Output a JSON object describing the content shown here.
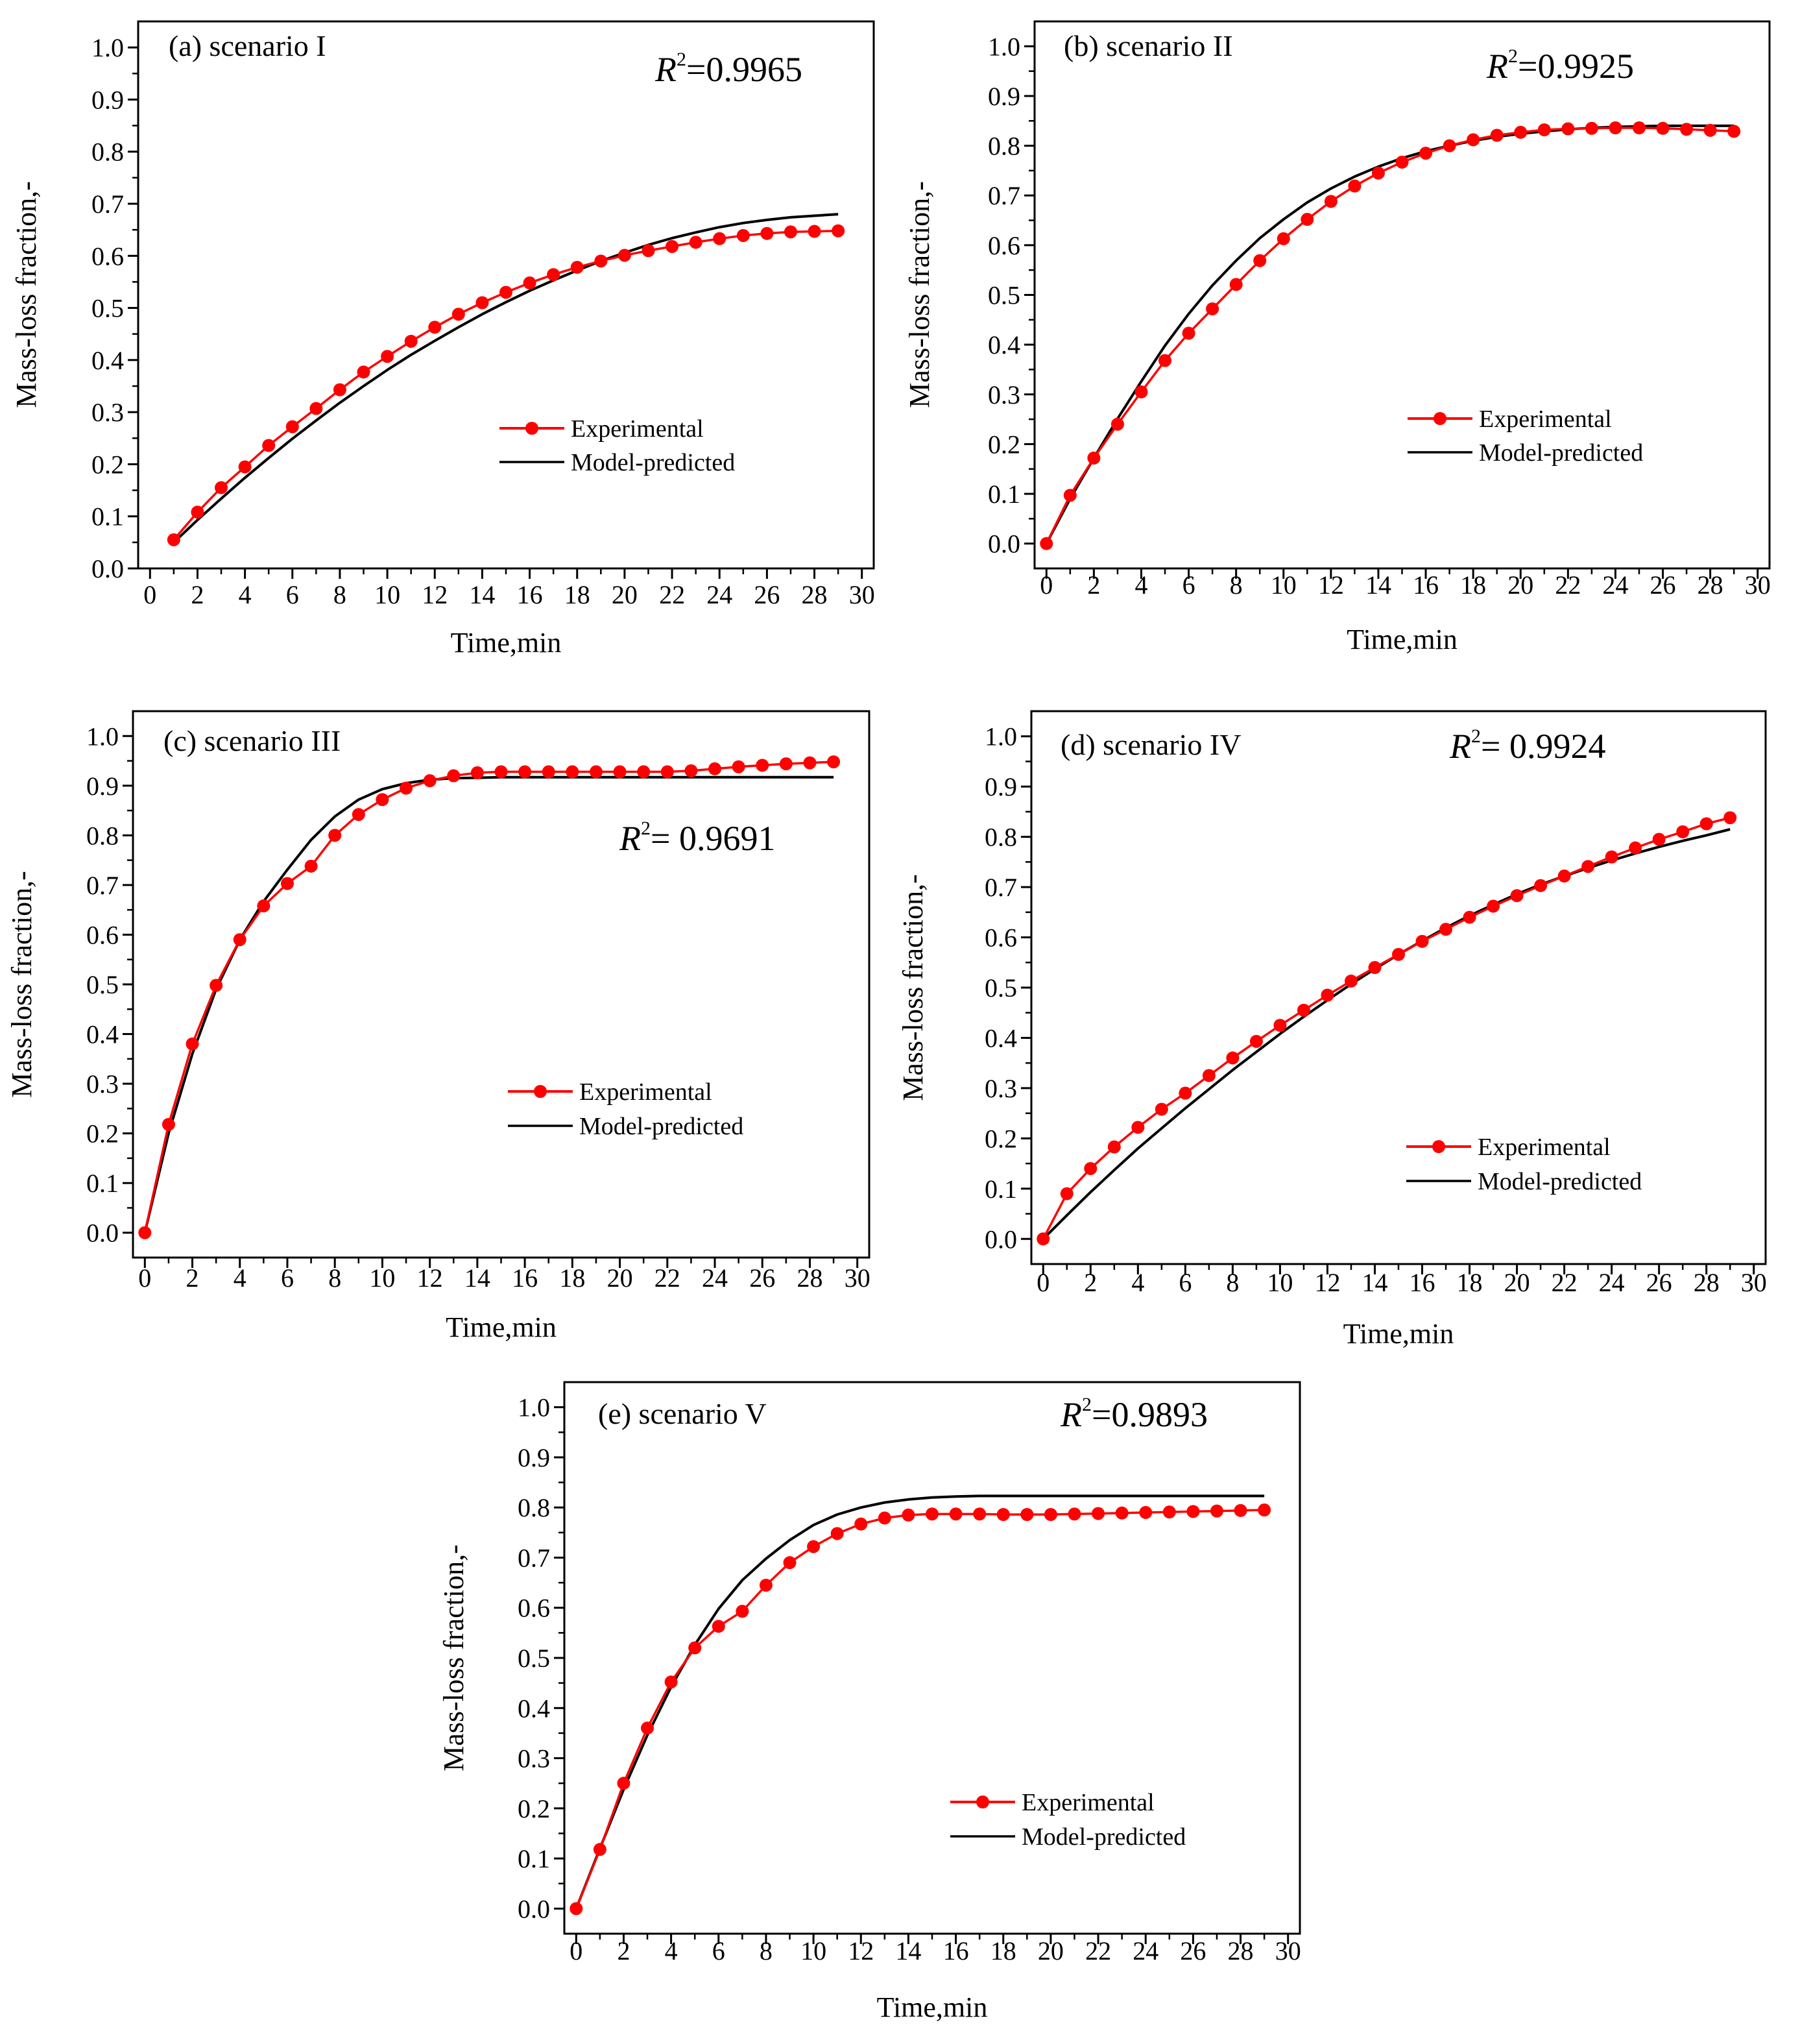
{
  "chart_data": [
    {
      "type": "line",
      "panel_label": "(a) scenario I",
      "r2_value": "=0.9965",
      "xlabel": "Time,min",
      "ylabel": "Mass-loss fraction,-",
      "xlim": [
        -0.5,
        30.5
      ],
      "ylim": [
        0,
        1.05
      ],
      "xticks": [
        "0",
        "2",
        "4",
        "6",
        "8",
        "10",
        "12",
        "14",
        "16",
        "18",
        "20",
        "22",
        "24",
        "26",
        "28",
        "30"
      ],
      "yticks": [
        "0.0",
        "0.1",
        "0.2",
        "0.3",
        "0.4",
        "0.5",
        "0.6",
        "0.7",
        "0.8",
        "0.9",
        "1.0"
      ],
      "legend": {
        "position": "center-right",
        "entries": [
          "Experimental",
          "Model-predicted"
        ]
      },
      "series": [
        {
          "name": "Experimental",
          "color": "#ff0000",
          "marker": "circle",
          "x": [
            1,
            2,
            3,
            4,
            5,
            6,
            7,
            8,
            9,
            10,
            11,
            12,
            13,
            14,
            15,
            16,
            17,
            18,
            19,
            20,
            21,
            22,
            23,
            24,
            25,
            26,
            27,
            28,
            29
          ],
          "y": [
            0.055,
            0.108,
            0.155,
            0.195,
            0.236,
            0.272,
            0.307,
            0.343,
            0.377,
            0.407,
            0.436,
            0.463,
            0.488,
            0.51,
            0.53,
            0.548,
            0.564,
            0.578,
            0.59,
            0.601,
            0.61,
            0.618,
            0.626,
            0.633,
            0.639,
            0.643,
            0.646,
            0.647,
            0.648
          ]
        },
        {
          "name": "Model-predicted",
          "color": "#000000",
          "marker": "none",
          "x": [
            1,
            2,
            3,
            4,
            5,
            6,
            7,
            8,
            9,
            10,
            11,
            12,
            13,
            14,
            15,
            16,
            17,
            18,
            19,
            20,
            21,
            22,
            23,
            24,
            25,
            26,
            27,
            28,
            29
          ],
          "y": [
            0.05,
            0.093,
            0.134,
            0.174,
            0.212,
            0.249,
            0.284,
            0.318,
            0.35,
            0.381,
            0.41,
            0.437,
            0.463,
            0.488,
            0.511,
            0.533,
            0.553,
            0.572,
            0.59,
            0.606,
            0.621,
            0.634,
            0.645,
            0.655,
            0.663,
            0.669,
            0.674,
            0.677,
            0.68
          ]
        }
      ]
    },
    {
      "type": "line",
      "panel_label": "(b) scenario II",
      "r2_value": "=0.9925",
      "xlabel": "Time,min",
      "ylabel": "Mass-loss fraction,-",
      "xlim": [
        -0.5,
        30.5
      ],
      "ylim": [
        -0.05,
        1.05
      ],
      "xticks": [
        "0",
        "2",
        "4",
        "6",
        "8",
        "10",
        "12",
        "14",
        "16",
        "18",
        "20",
        "22",
        "24",
        "26",
        "28",
        "30"
      ],
      "yticks": [
        "0.0",
        "0.1",
        "0.2",
        "0.3",
        "0.4",
        "0.5",
        "0.6",
        "0.7",
        "0.8",
        "0.9",
        "1.0"
      ],
      "legend": {
        "position": "center-right",
        "entries": [
          "Experimental",
          "Model-predicted"
        ]
      },
      "series": [
        {
          "name": "Experimental",
          "color": "#ff0000",
          "marker": "circle",
          "x": [
            0,
            1,
            2,
            3,
            4,
            5,
            6,
            7,
            8,
            9,
            10,
            11,
            12,
            13,
            14,
            15,
            16,
            17,
            18,
            19,
            20,
            21,
            22,
            23,
            24,
            25,
            26,
            27,
            28,
            29
          ],
          "y": [
            0.0,
            0.097,
            0.172,
            0.24,
            0.305,
            0.368,
            0.423,
            0.472,
            0.521,
            0.569,
            0.613,
            0.652,
            0.688,
            0.719,
            0.745,
            0.767,
            0.785,
            0.8,
            0.812,
            0.821,
            0.827,
            0.832,
            0.834,
            0.835,
            0.836,
            0.836,
            0.835,
            0.833,
            0.831,
            0.829
          ]
        },
        {
          "name": "Model-predicted",
          "color": "#000000",
          "marker": "none",
          "x": [
            0,
            1,
            2,
            3,
            4,
            5,
            6,
            7,
            8,
            9,
            10,
            11,
            12,
            13,
            14,
            15,
            16,
            17,
            18,
            19,
            20,
            21,
            22,
            23,
            24,
            25,
            26,
            27,
            28,
            29
          ],
          "y": [
            0.0,
            0.09,
            0.172,
            0.251,
            0.326,
            0.398,
            0.462,
            0.519,
            0.569,
            0.614,
            0.652,
            0.686,
            0.714,
            0.738,
            0.758,
            0.775,
            0.789,
            0.8,
            0.81,
            0.818,
            0.824,
            0.829,
            0.833,
            0.836,
            0.838,
            0.839,
            0.84,
            0.84,
            0.84,
            0.84
          ]
        }
      ]
    },
    {
      "type": "line",
      "panel_label": "(c) scenario III",
      "r2_value": "= 0.9691",
      "xlabel": "Time,min",
      "ylabel": "Mass-loss fraction,-",
      "xlim": [
        -0.5,
        30.5
      ],
      "ylim": [
        -0.05,
        1.05
      ],
      "xticks": [
        "0",
        "2",
        "4",
        "6",
        "8",
        "10",
        "12",
        "14",
        "16",
        "18",
        "20",
        "22",
        "24",
        "26",
        "28",
        "30"
      ],
      "yticks": [
        "0.0",
        "0.1",
        "0.2",
        "0.3",
        "0.4",
        "0.5",
        "0.6",
        "0.7",
        "0.8",
        "0.9",
        "1.0"
      ],
      "legend": {
        "position": "center-right",
        "entries": [
          "Experimental",
          "Model-predicted"
        ]
      },
      "series": [
        {
          "name": "Experimental",
          "color": "#ff0000",
          "marker": "circle",
          "x": [
            0,
            1,
            2,
            3,
            4,
            5,
            6,
            7,
            8,
            9,
            10,
            11,
            12,
            13,
            14,
            15,
            16,
            17,
            18,
            19,
            20,
            21,
            22,
            23,
            24,
            25,
            26,
            27,
            28,
            29
          ],
          "y": [
            0.0,
            0.218,
            0.38,
            0.498,
            0.59,
            0.658,
            0.703,
            0.738,
            0.8,
            0.842,
            0.872,
            0.895,
            0.91,
            0.92,
            0.926,
            0.928,
            0.928,
            0.928,
            0.928,
            0.928,
            0.928,
            0.928,
            0.928,
            0.93,
            0.934,
            0.938,
            0.941,
            0.944,
            0.946,
            0.948
          ]
        },
        {
          "name": "Model-predicted",
          "color": "#000000",
          "marker": "none",
          "x": [
            0,
            1,
            2,
            3,
            4,
            5,
            6,
            7,
            8,
            9,
            10,
            11,
            12,
            13,
            14,
            15,
            16,
            17,
            18,
            19,
            20,
            21,
            22,
            23,
            24,
            25,
            26,
            27,
            28,
            29
          ],
          "y": [
            0.0,
            0.2,
            0.36,
            0.49,
            0.59,
            0.667,
            0.731,
            0.791,
            0.838,
            0.872,
            0.893,
            0.905,
            0.912,
            0.915,
            0.916,
            0.917,
            0.917,
            0.917,
            0.917,
            0.917,
            0.917,
            0.917,
            0.917,
            0.917,
            0.917,
            0.917,
            0.917,
            0.917,
            0.917,
            0.917
          ]
        }
      ]
    },
    {
      "type": "line",
      "panel_label": "(d) scenario IV",
      "r2_value": "= 0.9924",
      "xlabel": "Time,min",
      "ylabel": "Mass-loss fraction,-",
      "xlim": [
        -0.5,
        30.5
      ],
      "ylim": [
        -0.05,
        1.05
      ],
      "xticks": [
        "0",
        "2",
        "4",
        "6",
        "8",
        "10",
        "12",
        "14",
        "16",
        "18",
        "20",
        "22",
        "24",
        "26",
        "28",
        "30"
      ],
      "yticks": [
        "0.0",
        "0.1",
        "0.2",
        "0.3",
        "0.4",
        "0.5",
        "0.6",
        "0.7",
        "0.8",
        "0.9",
        "1.0"
      ],
      "legend": {
        "position": "bottom-right",
        "entries": [
          "Experimental",
          "Model-predicted"
        ]
      },
      "series": [
        {
          "name": "Experimental",
          "color": "#ff0000",
          "marker": "circle",
          "x": [
            0,
            1,
            2,
            3,
            4,
            5,
            6,
            7,
            8,
            9,
            10,
            11,
            12,
            13,
            14,
            15,
            16,
            17,
            18,
            19,
            20,
            21,
            22,
            23,
            24,
            25,
            26,
            27,
            28,
            29
          ],
          "y": [
            0.0,
            0.09,
            0.14,
            0.183,
            0.222,
            0.258,
            0.29,
            0.325,
            0.36,
            0.393,
            0.425,
            0.455,
            0.485,
            0.513,
            0.54,
            0.566,
            0.592,
            0.616,
            0.64,
            0.662,
            0.683,
            0.703,
            0.722,
            0.741,
            0.76,
            0.778,
            0.795,
            0.81,
            0.826,
            0.838
          ]
        },
        {
          "name": "Model-predicted",
          "color": "#000000",
          "marker": "none",
          "x": [
            0,
            1,
            2,
            3,
            4,
            5,
            6,
            7,
            8,
            9,
            10,
            11,
            12,
            13,
            14,
            15,
            16,
            17,
            18,
            19,
            20,
            21,
            22,
            23,
            24,
            25,
            26,
            27,
            28,
            29
          ],
          "y": [
            0.0,
            0.047,
            0.093,
            0.137,
            0.18,
            0.22,
            0.26,
            0.298,
            0.336,
            0.372,
            0.408,
            0.442,
            0.475,
            0.507,
            0.537,
            0.566,
            0.593,
            0.619,
            0.643,
            0.665,
            0.686,
            0.705,
            0.722,
            0.738,
            0.753,
            0.767,
            0.78,
            0.792,
            0.803,
            0.815
          ]
        }
      ]
    },
    {
      "type": "line",
      "panel_label": "(e) scenario V",
      "r2_value": "=0.9893",
      "xlabel": "Time,min",
      "ylabel": "Mass-loss fraction,-",
      "xlim": [
        -0.5,
        30.5
      ],
      "ylim": [
        -0.05,
        1.05
      ],
      "xticks": [
        "0",
        "2",
        "4",
        "6",
        "8",
        "10",
        "12",
        "14",
        "16",
        "18",
        "20",
        "22",
        "24",
        "26",
        "28",
        "30"
      ],
      "yticks": [
        "0.0",
        "0.1",
        "0.2",
        "0.3",
        "0.4",
        "0.5",
        "0.6",
        "0.7",
        "0.8",
        "0.9",
        "1.0"
      ],
      "legend": {
        "position": "bottom-right",
        "entries": [
          "Experimental",
          "Model-predicted"
        ]
      },
      "series": [
        {
          "name": "Experimental",
          "color": "#ff0000",
          "marker": "circle",
          "x": [
            0,
            1,
            2,
            3,
            4,
            5,
            6,
            7,
            8,
            9,
            10,
            11,
            12,
            13,
            14,
            15,
            16,
            17,
            18,
            19,
            20,
            21,
            22,
            23,
            24,
            25,
            26,
            27,
            28,
            29
          ],
          "y": [
            0.0,
            0.118,
            0.25,
            0.36,
            0.452,
            0.52,
            0.563,
            0.593,
            0.645,
            0.69,
            0.722,
            0.748,
            0.767,
            0.779,
            0.785,
            0.787,
            0.787,
            0.787,
            0.786,
            0.786,
            0.786,
            0.787,
            0.788,
            0.789,
            0.79,
            0.791,
            0.792,
            0.793,
            0.794,
            0.795
          ]
        },
        {
          "name": "Model-predicted",
          "color": "#000000",
          "marker": "none",
          "x": [
            0,
            1,
            2,
            3,
            4,
            5,
            6,
            7,
            8,
            9,
            10,
            11,
            12,
            13,
            14,
            15,
            16,
            17,
            18,
            19,
            20,
            21,
            22,
            23,
            24,
            25,
            26,
            27,
            28,
            29
          ],
          "y": [
            0.0,
            0.12,
            0.238,
            0.346,
            0.442,
            0.526,
            0.598,
            0.655,
            0.698,
            0.735,
            0.765,
            0.786,
            0.8,
            0.81,
            0.816,
            0.82,
            0.822,
            0.823,
            0.823,
            0.823,
            0.823,
            0.823,
            0.823,
            0.823,
            0.823,
            0.823,
            0.823,
            0.823,
            0.823,
            0.823
          ]
        }
      ]
    }
  ]
}
